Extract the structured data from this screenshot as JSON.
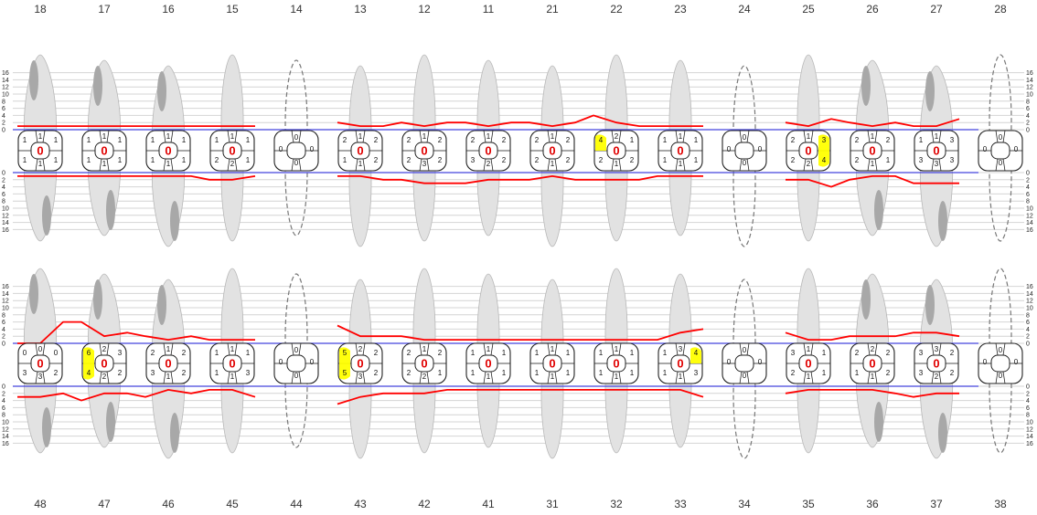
{
  "chart_data": {
    "type": "periodontal-chart",
    "scale_ticks": [
      "16",
      "14",
      "12",
      "10",
      "8",
      "6",
      "4",
      "2",
      "0"
    ],
    "colors": {
      "cej_line": "#4444dd",
      "attachment_line": "#ff0000",
      "highlight": "#ffff00",
      "center_value": "#e00000",
      "tooth": "#e2e2e2",
      "root_dark": "#a8a8a8",
      "missing_outline": "#777777"
    },
    "upper": {
      "teeth": [
        "18",
        "17",
        "16",
        "15",
        "14",
        "13",
        "12",
        "11",
        "21",
        "22",
        "23",
        "24",
        "25",
        "26",
        "27",
        "28"
      ],
      "missing": [
        false,
        false,
        false,
        false,
        true,
        false,
        false,
        false,
        false,
        false,
        false,
        true,
        false,
        false,
        false,
        true
      ],
      "buccal_pd": [
        [
          1,
          1,
          1
        ],
        [
          1,
          1,
          1
        ],
        [
          1,
          1,
          1
        ],
        [
          1,
          1,
          1
        ],
        [
          0,
          0,
          0
        ],
        [
          2,
          1,
          2
        ],
        [
          2,
          1,
          2
        ],
        [
          2,
          1,
          2
        ],
        [
          2,
          1,
          2
        ],
        [
          4,
          2,
          1
        ],
        [
          1,
          1,
          1
        ],
        [
          0,
          0,
          0
        ],
        [
          2,
          1,
          3
        ],
        [
          2,
          1,
          2
        ],
        [
          1,
          1,
          3
        ],
        [
          0,
          0,
          0
        ]
      ],
      "lingual_pd": [
        [
          1,
          1,
          1
        ],
        [
          1,
          1,
          1
        ],
        [
          1,
          1,
          1
        ],
        [
          2,
          2,
          1
        ],
        [
          0,
          0,
          0
        ],
        [
          1,
          1,
          2
        ],
        [
          2,
          3,
          2
        ],
        [
          3,
          2,
          2
        ],
        [
          2,
          1,
          2
        ],
        [
          2,
          1,
          2
        ],
        [
          1,
          1,
          1
        ],
        [
          0,
          0,
          0
        ],
        [
          2,
          2,
          4
        ],
        [
          2,
          1,
          1
        ],
        [
          3,
          3,
          3
        ],
        [
          0,
          0,
          0
        ]
      ],
      "mobility": [
        "0",
        "0",
        "0",
        "0",
        "",
        "0",
        "0",
        "0",
        "0",
        "0",
        "0",
        "",
        "0",
        "0",
        "0",
        ""
      ],
      "buccal_highlight": [
        [],
        [],
        [],
        [],
        [],
        [],
        [],
        [],
        [],
        [
          0
        ],
        [],
        [],
        [
          2
        ],
        [],
        [],
        []
      ],
      "lingual_highlight": [
        [],
        [],
        [],
        [],
        [],
        [],
        [],
        [],
        [],
        [],
        [],
        [],
        [
          2
        ],
        [],
        [],
        []
      ],
      "buccal_attachment_level": [
        [
          1,
          1,
          1
        ],
        [
          1,
          1,
          1
        ],
        [
          1,
          1,
          1
        ],
        [
          1,
          1,
          1
        ],
        [
          0,
          0,
          0
        ],
        [
          2,
          1,
          1
        ],
        [
          2,
          1,
          2
        ],
        [
          2,
          1,
          2
        ],
        [
          2,
          1,
          2
        ],
        [
          4,
          2,
          1
        ],
        [
          1,
          1,
          1
        ],
        [
          0,
          0,
          0
        ],
        [
          2,
          1,
          3
        ],
        [
          2,
          1,
          2
        ],
        [
          1,
          1,
          3
        ],
        [
          0,
          0,
          0
        ]
      ],
      "lingual_attachment_level": [
        [
          1,
          1,
          1
        ],
        [
          1,
          1,
          1
        ],
        [
          1,
          1,
          1
        ],
        [
          2,
          2,
          1
        ],
        [
          0,
          0,
          0
        ],
        [
          1,
          1,
          2
        ],
        [
          2,
          3,
          3
        ],
        [
          3,
          2,
          2
        ],
        [
          2,
          1,
          2
        ],
        [
          2,
          2,
          2
        ],
        [
          1,
          1,
          1
        ],
        [
          0,
          0,
          0
        ],
        [
          2,
          2,
          4
        ],
        [
          2,
          1,
          1
        ],
        [
          3,
          3,
          3
        ],
        [
          0,
          0,
          0
        ]
      ]
    },
    "lower": {
      "teeth": [
        "48",
        "47",
        "46",
        "45",
        "44",
        "43",
        "42",
        "41",
        "31",
        "32",
        "33",
        "34",
        "35",
        "36",
        "37",
        "38"
      ],
      "missing": [
        false,
        false,
        false,
        false,
        true,
        false,
        false,
        false,
        false,
        false,
        false,
        true,
        false,
        false,
        false,
        true
      ],
      "buccal_pd": [
        [
          0,
          0,
          0
        ],
        [
          6,
          2,
          3
        ],
        [
          2,
          1,
          2
        ],
        [
          1,
          1,
          1
        ],
        [
          0,
          0,
          0
        ],
        [
          5,
          2,
          2
        ],
        [
          2,
          1,
          2
        ],
        [
          1,
          1,
          1
        ],
        [
          1,
          1,
          1
        ],
        [
          1,
          1,
          1
        ],
        [
          1,
          3,
          4
        ],
        [
          0,
          0,
          0
        ],
        [
          3,
          1,
          1
        ],
        [
          2,
          2,
          2
        ],
        [
          3,
          3,
          2
        ],
        [
          0,
          0,
          0
        ]
      ],
      "lingual_pd": [
        [
          3,
          3,
          2
        ],
        [
          4,
          2,
          2
        ],
        [
          3,
          1,
          2
        ],
        [
          1,
          1,
          3
        ],
        [
          0,
          0,
          0
        ],
        [
          5,
          3,
          2
        ],
        [
          2,
          2,
          1
        ],
        [
          1,
          1,
          1
        ],
        [
          1,
          1,
          1
        ],
        [
          1,
          1,
          1
        ],
        [
          1,
          1,
          3
        ],
        [
          0,
          0,
          0
        ],
        [
          2,
          1,
          1
        ],
        [
          1,
          1,
          2
        ],
        [
          3,
          2,
          2
        ],
        [
          0,
          0,
          0
        ]
      ],
      "mobility": [
        "0",
        "0",
        "0",
        "0",
        "",
        "0",
        "0",
        "0",
        "0",
        "0",
        "0",
        "",
        "0",
        "0",
        "0",
        ""
      ],
      "buccal_highlight": [
        [],
        [
          0
        ],
        [],
        [],
        [],
        [
          0
        ],
        [],
        [],
        [],
        [],
        [
          2
        ],
        [],
        [],
        [],
        [],
        []
      ],
      "lingual_highlight": [
        [],
        [
          0
        ],
        [],
        [],
        [],
        [
          0
        ],
        [],
        [],
        [],
        [],
        [],
        [],
        [],
        [],
        [],
        []
      ],
      "buccal_attachment_level": [
        [
          0,
          0,
          6
        ],
        [
          6,
          2,
          3
        ],
        [
          2,
          1,
          2
        ],
        [
          1,
          1,
          1
        ],
        [
          0,
          0,
          0
        ],
        [
          5,
          2,
          2
        ],
        [
          2,
          1,
          1
        ],
        [
          1,
          1,
          1
        ],
        [
          1,
          1,
          1
        ],
        [
          1,
          1,
          1
        ],
        [
          1,
          3,
          4
        ],
        [
          0,
          0,
          0
        ],
        [
          3,
          1,
          1
        ],
        [
          2,
          2,
          2
        ],
        [
          3,
          3,
          2
        ],
        [
          0,
          0,
          0
        ]
      ],
      "lingual_attachment_level": [
        [
          3,
          3,
          2
        ],
        [
          4,
          2,
          2
        ],
        [
          3,
          1,
          2
        ],
        [
          1,
          1,
          3
        ],
        [
          0,
          0,
          0
        ],
        [
          5,
          3,
          2
        ],
        [
          2,
          2,
          1
        ],
        [
          1,
          1,
          1
        ],
        [
          1,
          1,
          1
        ],
        [
          1,
          1,
          1
        ],
        [
          1,
          1,
          3
        ],
        [
          0,
          0,
          0
        ],
        [
          2,
          1,
          1
        ],
        [
          1,
          1,
          2
        ],
        [
          3,
          2,
          2
        ],
        [
          0,
          0,
          0
        ]
      ]
    }
  }
}
